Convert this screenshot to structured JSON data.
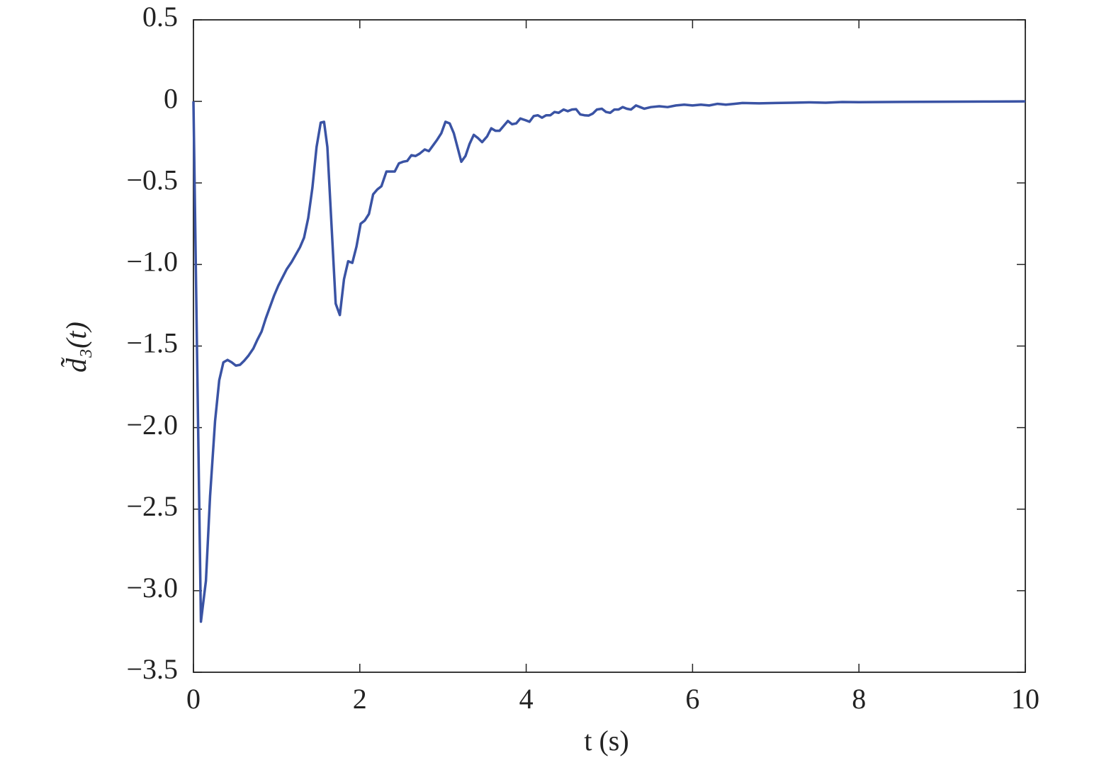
{
  "chart_data": {
    "type": "line",
    "x_label": "t (s)",
    "y_label": "d̃₃(t)",
    "color": "#3a53a4",
    "x": [
      0,
      0.09,
      0.15,
      0.2,
      0.26,
      0.31,
      0.36,
      0.41,
      0.46,
      0.51,
      0.56,
      0.61,
      0.66,
      0.72,
      0.77,
      0.82,
      0.87,
      0.92,
      0.97,
      1.02,
      1.07,
      1.12,
      1.18,
      1.23,
      1.28,
      1.33,
      1.38,
      1.43,
      1.48,
      1.53,
      1.57,
      1.61,
      1.66,
      1.71,
      1.76,
      1.81,
      1.86,
      1.91,
      1.96,
      2.01,
      2.06,
      2.11,
      2.16,
      2.21,
      2.26,
      2.32,
      2.37,
      2.42,
      2.47,
      2.52,
      2.57,
      2.62,
      2.67,
      2.72,
      2.78,
      2.83,
      2.88,
      2.93,
      2.98,
      3.03,
      3.08,
      3.13,
      3.22,
      3.27,
      3.32,
      3.37,
      3.42,
      3.47,
      3.53,
      3.58,
      3.63,
      3.68,
      3.73,
      3.78,
      3.83,
      3.88,
      3.93,
      3.99,
      4.04,
      4.09,
      4.14,
      4.19,
      4.24,
      4.29,
      4.34,
      4.39,
      4.45,
      4.5,
      4.55,
      4.6,
      4.65,
      4.7,
      4.75,
      4.8,
      4.85,
      4.91,
      4.96,
      5.01,
      5.06,
      5.11,
      5.16,
      5.21,
      5.26,
      5.32,
      5.37,
      5.42,
      5.5,
      5.6,
      5.7,
      5.8,
      5.9,
      6.0,
      6.1,
      6.2,
      6.3,
      6.4,
      6.5,
      6.6,
      6.8,
      7.0,
      7.2,
      7.4,
      7.6,
      7.8,
      8.0,
      8.5,
      9.0,
      9.5,
      10
    ],
    "values": [
      0,
      -3.19,
      -2.94,
      -2.42,
      -1.96,
      -1.71,
      -1.6,
      -1.585,
      -1.6,
      -1.62,
      -1.615,
      -1.59,
      -1.56,
      -1.515,
      -1.46,
      -1.41,
      -1.33,
      -1.26,
      -1.19,
      -1.13,
      -1.08,
      -1.03,
      -0.985,
      -0.94,
      -0.895,
      -0.835,
      -0.715,
      -0.53,
      -0.28,
      -0.13,
      -0.125,
      -0.28,
      -0.76,
      -1.24,
      -1.31,
      -1.09,
      -0.98,
      -0.99,
      -0.89,
      -0.75,
      -0.73,
      -0.69,
      -0.57,
      -0.54,
      -0.52,
      -0.43,
      -0.43,
      -0.43,
      -0.38,
      -0.37,
      -0.365,
      -0.33,
      -0.335,
      -0.32,
      -0.295,
      -0.305,
      -0.27,
      -0.235,
      -0.195,
      -0.125,
      -0.135,
      -0.195,
      -0.37,
      -0.335,
      -0.26,
      -0.205,
      -0.225,
      -0.25,
      -0.215,
      -0.165,
      -0.18,
      -0.18,
      -0.15,
      -0.12,
      -0.14,
      -0.135,
      -0.105,
      -0.115,
      -0.125,
      -0.09,
      -0.085,
      -0.1,
      -0.085,
      -0.085,
      -0.065,
      -0.07,
      -0.05,
      -0.06,
      -0.05,
      -0.048,
      -0.08,
      -0.085,
      -0.087,
      -0.075,
      -0.05,
      -0.045,
      -0.065,
      -0.07,
      -0.05,
      -0.05,
      -0.035,
      -0.045,
      -0.05,
      -0.025,
      -0.035,
      -0.045,
      -0.035,
      -0.03,
      -0.035,
      -0.025,
      -0.02,
      -0.025,
      -0.02,
      -0.025,
      -0.015,
      -0.02,
      -0.015,
      -0.01,
      -0.012,
      -0.01,
      -0.008,
      -0.006,
      -0.008,
      -0.004,
      -0.005,
      -0.003,
      -0.002,
      -0.001,
      0
    ],
    "xlim": [
      0,
      10
    ],
    "xticks": [
      0,
      2,
      4,
      6,
      8,
      10
    ],
    "ylim": [
      -3.5,
      0.5
    ],
    "yticks": [
      {
        "value": -3.5,
        "label": "−3.5"
      },
      {
        "value": -3.0,
        "label": "−3.0"
      },
      {
        "value": -2.5,
        "label": "−2.5"
      },
      {
        "value": -2.0,
        "label": "−2.0"
      },
      {
        "value": -1.5,
        "label": "−1.5"
      },
      {
        "value": -1.0,
        "label": "−1.0"
      },
      {
        "value": -0.5,
        "label": "−0.5"
      },
      0,
      0.5
    ]
  }
}
